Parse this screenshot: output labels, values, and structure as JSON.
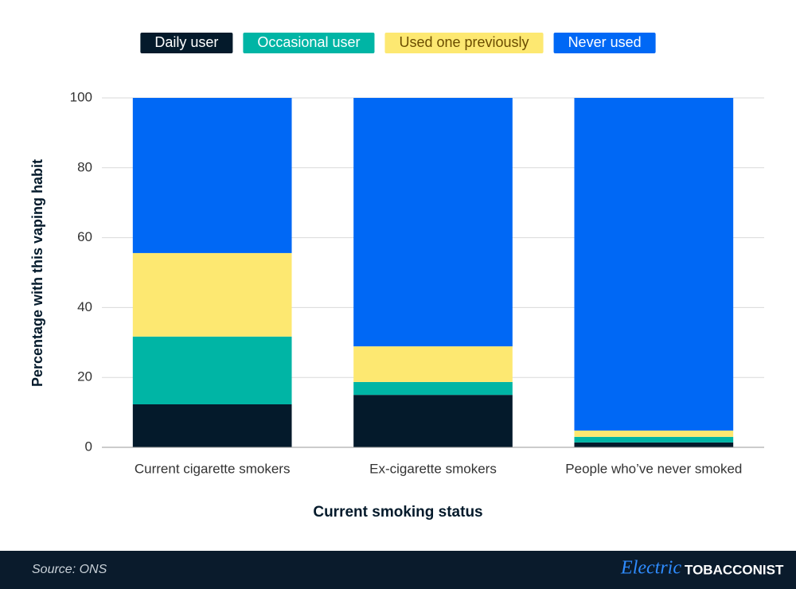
{
  "chart_data": {
    "type": "stacked_bar",
    "categories": [
      "Current cigarette smokers",
      "Ex-cigarette smokers",
      "People who’ve never smoked"
    ],
    "series": [
      {
        "name": "Daily user",
        "color": "#041a2b",
        "values": [
          12.3,
          15.0,
          1.4
        ]
      },
      {
        "name": "Occasional user",
        "color": "#00b5a5",
        "values": [
          19.4,
          3.7,
          1.6
        ]
      },
      {
        "name": "Used one previously",
        "color": "#fde871",
        "values": [
          23.9,
          10.2,
          1.8
        ]
      },
      {
        "name": "Never used",
        "color": "#0068f5",
        "values": [
          44.4,
          71.1,
          95.2
        ]
      }
    ],
    "ylim": [
      0,
      100
    ],
    "yticks": [
      0,
      20,
      40,
      60,
      80,
      100
    ],
    "grid": true,
    "y_label": "Percentage with this vaping habit",
    "x_label": "Current smoking status",
    "legend": "top"
  },
  "footer": {
    "source": "Source: ONS",
    "brand_script": "Electric",
    "brand_bold": "TOBACCONIST"
  }
}
